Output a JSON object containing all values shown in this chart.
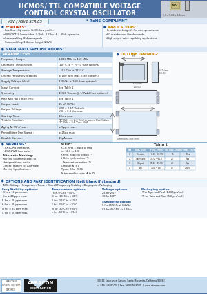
{
  "title_line1": "HCMOS/ TTL COMPATIBLE VOLTAGE",
  "title_line2": "CONTROL CRYSTAL OSCILLATOR",
  "series": "ASV / ASV1 SERIES",
  "rohs": "* RoHS COMPLIANT",
  "part_label": "ASV",
  "dimensions_label": "7.0 x 5.08 x 1.8mm",
  "features_title": "FEATURES:",
  "features": [
    "Leadless chip carrier (LCC). Low profile.",
    "HCMOS/TTL Compatible, 3.3Vdc, 2.5Vdc, & 1.8Vdc operation.",
    "Seam welding. Reflow capable.",
    "Seam welding, 1.4 max. height (ASV1)"
  ],
  "applications_title": "APPLICATIONS:",
  "applications": [
    "Provide clock signals for microprocessors,",
    "PC mainboards, Graphic cards.",
    "High output drive capability applications."
  ],
  "std_specs_title": "STANDARD SPECIFICATIONS:",
  "outline_title": "OUTLINE DRAWING:",
  "params": [
    [
      "Frequency Range:",
      "1.000 MHz to 150 MHz"
    ],
    [
      "Operating Temperature:",
      "-10° C to + 70° C (see options)"
    ],
    [
      "Storage Temperature:",
      "- 55° C to + 125° C"
    ],
    [
      "Overall Frequency Stability:",
      "± 100 ppm max. (see options)"
    ],
    [
      "Supply Voltage (Vdd):",
      "3.3 Vdc ± 10% (see options)"
    ],
    [
      "Input Current:",
      "See Table 1"
    ],
    [
      "Symmetry:",
      "40/60 % max.@ 1/2Vdd (see options)"
    ],
    [
      "Rise And Fall Time (Tr/tf):",
      "See Table 1"
    ],
    [
      "Output Load:",
      "15 pF (STTL)"
    ],
    [
      "Output Voltage:",
      "VOH = 0.9 * Vdd min.\nVOL < 0.4 Vdc max."
    ],
    [
      "Start-up Time:",
      "10ms max."
    ],
    [
      "Tristate Function:",
      "\"1\" (VIH >= 2.2 Vdc) or open: Oscillation\n\"0\" (VIL < 0.8 Vdc): Hi Z"
    ],
    [
      "Aging At 25°c/year :",
      "± 5ppm max."
    ],
    [
      "Period Jitter One Sigma :",
      "± 25ps max."
    ],
    [
      "Disable Current:",
      "15µA max."
    ]
  ],
  "marking_title": "MARKING:",
  "marking_items": [
    "- XX.R, RS (see note)",
    "- ASV ZYW (see note)"
  ],
  "alt_marking_title": "Alternate Marking:",
  "alt_marking_items": [
    "Marking scheme subject to",
    "change without notice.",
    "Contact factory for Alternate",
    "Marking Specifications."
  ],
  "note_title": "NOTE:",
  "note_items": [
    "XX.R: First 3 digits of freq.",
    "ex: 66.6 or 100",
    "R Freq. Stability option (*)",
    "S Duty cycle option (*)",
    "L Temperature option (*)",
    "Z-month A to L",
    "Y year: 6 for 2006",
    "W traceability code (A to Z)"
  ],
  "table1_title": "Table 1",
  "table1_headers": [
    "PIN",
    "FUNCTION",
    "Freq. (MHz)",
    "Idd max. (mA)",
    "Tr/Tf max. (nSec)"
  ],
  "table1_rows": [
    [
      "1",
      "Tri-state",
      "1.0 ~ 34.99",
      "15",
      "10ns"
    ],
    [
      "2",
      "GND/Case",
      "35.0 ~ 60.0",
      "20",
      "5ns"
    ],
    [
      "3",
      "Output",
      "60.01~99.99",
      "40",
      "5ns"
    ],
    [
      "4",
      "Vdd",
      "100 ~ 150",
      "50",
      "2.5ns"
    ]
  ],
  "options_title": "OPTIONS AND PART IDENTIFICATION [Left blank if standard]:",
  "options_subtitle": "ASV - Voltage - Frequency - Temp. - Overall Frequency Stability - Duty cycle - Packaging",
  "freq_stab_title": "Freq Stability options:",
  "freq_stab": [
    "Y for ± 10 ppm max.",
    "J for ± 20 ppm max.",
    "R for ± 25 ppm max.",
    "K for ± 30 ppm max.",
    "M for ± 35 ppm max.",
    "C for ± 50 ppm max."
  ],
  "temp_title": "Temperature options:",
  "temp": [
    "I for -0°C to +50°C",
    "D for -10°C to +60°C",
    "E for -20°C to +70°C",
    "F for -30°C to +70°C",
    "N for -30°C to +85°C",
    "L for -40°C to +85°C"
  ],
  "voltage_title": "Voltage options:",
  "voltage": [
    "25 for 2.5V",
    "18 for 1.8V"
  ],
  "symmetry_title": "Symmetry option:",
  "symmetry": [
    "S for 45/55% at 1/2Vdd",
    "S1 for 45/55% at 1.4Vdc"
  ],
  "packaging_title": "Packaging option:",
  "packaging": [
    "T for Tape and Reel (1,000pcs/reel)",
    "T5 for Tape and Reel (500pcs/reel)"
  ],
  "address": "30032 Esperanza, Rancho Santa Margarita, California 92688",
  "phone": "(c) 949-546-8000  |  Fax: 949-546-8001  |  www.abracon.com",
  "iso_text": "ABRACON IS\nISO 9001 / QS 9000\nCERTIFIED",
  "header_bg": "#4a6fa0",
  "section_bg": "#d8e8f5",
  "table_header_bg": "#8ab0d0",
  "row_alt_bg": "#dde8f4",
  "row_bg": "#ffffff",
  "border_color": "#8ab0cc",
  "body_bg": "#ffffff",
  "blue_title_color": "#1a5090",
  "footer_bg": "#c8ddf0"
}
